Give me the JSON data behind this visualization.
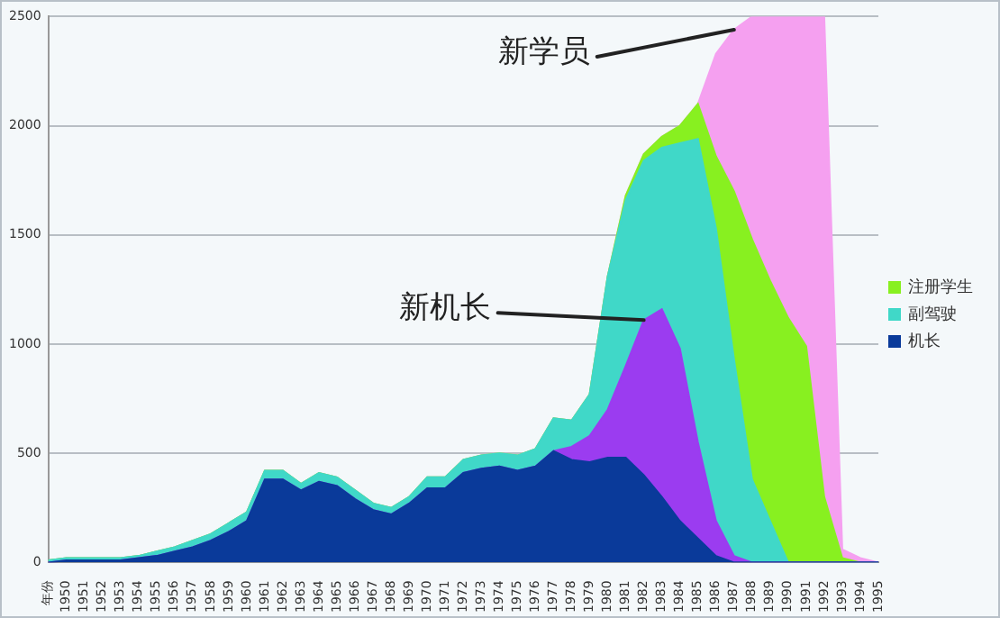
{
  "chart_data": {
    "type": "area",
    "stacked": true,
    "categories": [
      "年份",
      "1950",
      "1951",
      "1952",
      "1953",
      "1954",
      "1955",
      "1956",
      "1957",
      "1958",
      "1959",
      "1960",
      "1961",
      "1962",
      "1963",
      "1964",
      "1965",
      "1966",
      "1967",
      "1968",
      "1969",
      "1970",
      "1971",
      "1972",
      "1973",
      "1974",
      "1975",
      "1976",
      "1977",
      "1978",
      "1979",
      "1980",
      "1981",
      "1982",
      "1983",
      "1984",
      "1985",
      "1986",
      "1987",
      "1988",
      "1989",
      "1990",
      "1991",
      "1992",
      "1993",
      "1994",
      "1995"
    ],
    "series": [
      {
        "name": "机长",
        "color": "#0a3a9a",
        "values": [
          0,
          10,
          10,
          10,
          10,
          20,
          30,
          50,
          70,
          100,
          140,
          190,
          380,
          380,
          330,
          370,
          350,
          290,
          240,
          220,
          270,
          340,
          340,
          410,
          430,
          440,
          420,
          440,
          510,
          470,
          460,
          480,
          480,
          400,
          300,
          190,
          110,
          30,
          0,
          0,
          0,
          0,
          0,
          0,
          0,
          0,
          0
        ]
      },
      {
        "color": "#9b3cf0",
        "values": [
          0,
          0,
          0,
          0,
          0,
          0,
          0,
          0,
          0,
          0,
          0,
          0,
          0,
          0,
          0,
          0,
          0,
          0,
          0,
          0,
          0,
          0,
          0,
          0,
          0,
          0,
          0,
          0,
          0,
          60,
          120,
          220,
          420,
          710,
          860,
          790,
          440,
          160,
          30,
          0,
          0,
          0,
          0,
          0,
          0,
          0,
          0
        ]
      },
      {
        "name": "副驾驶",
        "color": "#40d8c8",
        "values": [
          10,
          10,
          10,
          10,
          10,
          10,
          20,
          20,
          30,
          30,
          40,
          40,
          40,
          40,
          30,
          40,
          40,
          40,
          30,
          30,
          30,
          50,
          50,
          60,
          60,
          60,
          70,
          80,
          150,
          120,
          190,
          610,
          760,
          730,
          740,
          940,
          1390,
          1340,
          900,
          380,
          190,
          0,
          0,
          0,
          0,
          0,
          0
        ]
      },
      {
        "name": "注册学生",
        "color": "#88f020",
        "values": [
          0,
          0,
          0,
          0,
          0,
          0,
          0,
          0,
          0,
          0,
          0,
          0,
          0,
          0,
          0,
          0,
          0,
          0,
          0,
          0,
          0,
          0,
          0,
          0,
          0,
          0,
          0,
          0,
          0,
          0,
          0,
          0,
          20,
          30,
          50,
          80,
          160,
          330,
          770,
          1100,
          1100,
          1120,
          990,
          300,
          20,
          0,
          0
        ]
      },
      {
        "color": "#f5a0f0",
        "values": [
          0,
          0,
          0,
          0,
          0,
          0,
          0,
          0,
          0,
          0,
          0,
          0,
          0,
          0,
          0,
          0,
          0,
          0,
          0,
          0,
          0,
          0,
          0,
          0,
          0,
          0,
          0,
          0,
          0,
          0,
          0,
          0,
          0,
          0,
          0,
          0,
          0,
          470,
          740,
          1020,
          1210,
          1380,
          1510,
          2200,
          40,
          20,
          0
        ]
      }
    ],
    "ylim": [
      0,
      2500
    ],
    "yticks": [
      0,
      500,
      1000,
      1500,
      2000,
      2500
    ],
    "grid": "y",
    "legend": "right",
    "annotations": [
      {
        "text": "新机长",
        "x": "1982",
        "y": 1110
      },
      {
        "text": "新学员",
        "x": "1987",
        "y": 2440
      }
    ]
  }
}
